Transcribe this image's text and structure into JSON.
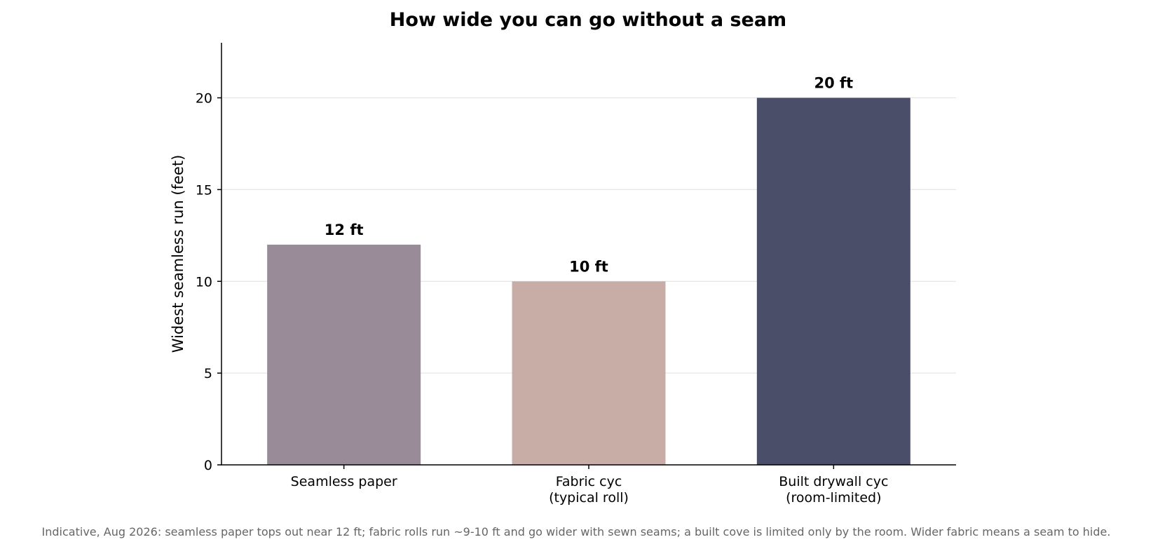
{
  "chart_data": {
    "type": "bar",
    "title": "How wide you can go without a seam",
    "ylabel": "Widest seamless run (feet)",
    "xlabel": "",
    "categories": [
      [
        "Seamless paper"
      ],
      [
        "Fabric cyc",
        "(typical roll)"
      ],
      [
        "Built drywall cyc",
        "(room-limited)"
      ]
    ],
    "values": [
      12,
      10,
      20
    ],
    "value_labels": [
      "12 ft",
      "10 ft",
      "20 ft"
    ],
    "colors": [
      "#9a8b99",
      "#c8ada7",
      "#4a4e69"
    ],
    "ylim": [
      0,
      23
    ],
    "yticks": [
      0,
      5,
      10,
      15,
      20
    ],
    "grid": "horizontal",
    "legend": "none"
  },
  "footnote": "Indicative, Aug 2026: seamless paper tops out near 12 ft; fabric rolls run ~9-10 ft and go wider with sewn seams; a built cove is limited only by the room. Wider fabric means a seam to hide."
}
